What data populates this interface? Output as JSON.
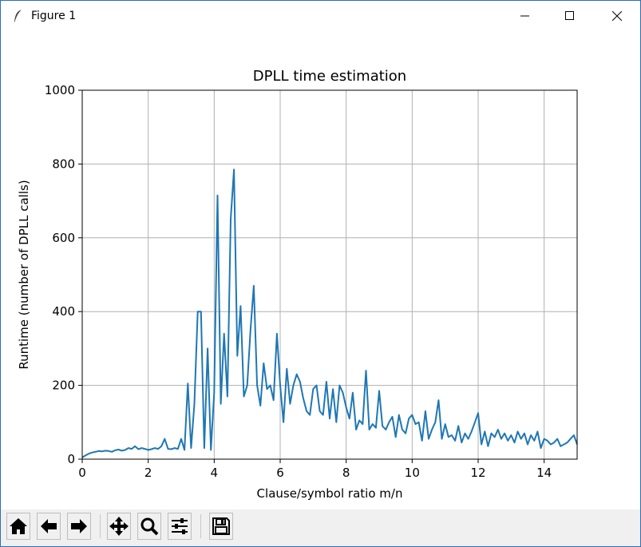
{
  "window": {
    "title": "Figure 1",
    "icons": [
      "feather-icon",
      "minimize-icon",
      "maximize-icon",
      "close-icon"
    ]
  },
  "toolbar": {
    "buttons": [
      "home-icon",
      "back-arrow-icon",
      "forward-arrow-icon",
      "pan-icon",
      "zoom-icon",
      "configure-subplots-icon",
      "save-icon"
    ]
  },
  "chart_data": {
    "type": "line",
    "title": "DPLL time estimation",
    "xlabel": "Clause/symbol ratio m/n",
    "ylabel": "Runtime (number of DPLL calls)",
    "xlim": [
      0,
      15
    ],
    "ylim": [
      0,
      1000
    ],
    "xticks": [
      0,
      2,
      4,
      6,
      8,
      10,
      12,
      14
    ],
    "xtick_labels": [
      "0",
      "2",
      "4",
      "6",
      "8",
      "10",
      "12",
      "14"
    ],
    "yticks": [
      0,
      200,
      400,
      600,
      800,
      1000
    ],
    "ytick_labels": [
      "0",
      "200",
      "400",
      "600",
      "800",
      "1000"
    ],
    "grid": true,
    "line_color": "#1f77b4",
    "series": [
      {
        "x": [
          0,
          0.1,
          0.2,
          0.3,
          0.4,
          0.5,
          0.6,
          0.7,
          0.8,
          0.9,
          1.0,
          1.1,
          1.2,
          1.3,
          1.4,
          1.5,
          1.6,
          1.7,
          1.8,
          1.9,
          2.0,
          2.1,
          2.2,
          2.3,
          2.4,
          2.5,
          2.6,
          2.7,
          2.8,
          2.9,
          3.0,
          3.1,
          3.2,
          3.3,
          3.4,
          3.5,
          3.6,
          3.7,
          3.8,
          3.9,
          4.0,
          4.1,
          4.2,
          4.3,
          4.4,
          4.5,
          4.6,
          4.7,
          4.8,
          4.9,
          5.0,
          5.1,
          5.2,
          5.3,
          5.4,
          5.5,
          5.6,
          5.7,
          5.8,
          5.9,
          6.0,
          6.1,
          6.2,
          6.3,
          6.4,
          6.5,
          6.6,
          6.7,
          6.8,
          6.9,
          7.0,
          7.1,
          7.2,
          7.3,
          7.4,
          7.5,
          7.6,
          7.7,
          7.8,
          7.9,
          8.0,
          8.1,
          8.2,
          8.3,
          8.4,
          8.5,
          8.6,
          8.7,
          8.8,
          8.9,
          9.0,
          9.1,
          9.2,
          9.3,
          9.4,
          9.5,
          9.6,
          9.7,
          9.8,
          9.9,
          10.0,
          10.1,
          10.2,
          10.3,
          10.4,
          10.5,
          10.6,
          10.7,
          10.8,
          10.9,
          11.0,
          11.1,
          11.2,
          11.3,
          11.4,
          11.5,
          11.6,
          11.7,
          11.8,
          11.9,
          12.0,
          12.1,
          12.2,
          12.3,
          12.4,
          12.5,
          12.6,
          12.7,
          12.8,
          12.9,
          13.0,
          13.1,
          13.2,
          13.3,
          13.4,
          13.5,
          13.6,
          13.7,
          13.8,
          13.9,
          14.0,
          14.1,
          14.2,
          14.3,
          14.4,
          14.5,
          14.6,
          14.7,
          14.8,
          14.9,
          15.0
        ],
        "y": [
          5,
          10,
          15,
          18,
          20,
          22,
          21,
          23,
          22,
          20,
          24,
          26,
          23,
          25,
          30,
          28,
          35,
          27,
          30,
          28,
          25,
          27,
          30,
          28,
          35,
          55,
          28,
          27,
          30,
          28,
          55,
          25,
          205,
          30,
          150,
          400,
          400,
          30,
          300,
          25,
          180,
          715,
          150,
          340,
          170,
          650,
          785,
          280,
          415,
          170,
          200,
          350,
          470,
          200,
          145,
          260,
          190,
          200,
          160,
          340,
          200,
          100,
          245,
          150,
          200,
          230,
          210,
          165,
          130,
          120,
          190,
          200,
          130,
          120,
          210,
          110,
          190,
          100,
          200,
          180,
          140,
          110,
          180,
          80,
          105,
          95,
          240,
          80,
          95,
          85,
          185,
          90,
          80,
          100,
          115,
          60,
          120,
          80,
          70,
          110,
          120,
          95,
          100,
          50,
          130,
          55,
          80,
          100,
          160,
          55,
          95,
          60,
          65,
          50,
          90,
          45,
          70,
          55,
          75,
          100,
          125,
          40,
          75,
          35,
          70,
          60,
          80,
          55,
          70,
          50,
          65,
          45,
          75,
          55,
          70,
          40,
          65,
          50,
          75,
          30,
          55,
          50,
          40,
          45,
          55,
          35,
          40,
          45,
          55,
          65,
          40
        ]
      }
    ]
  }
}
